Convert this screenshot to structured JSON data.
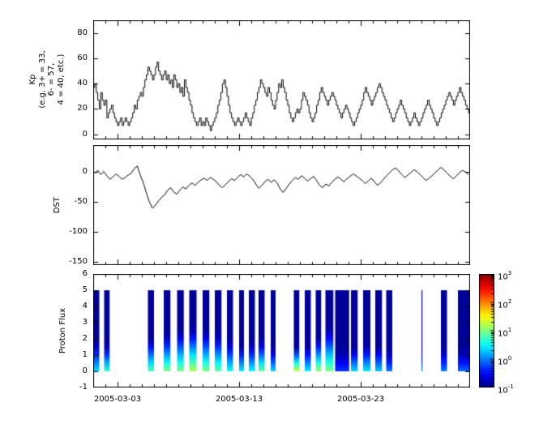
{
  "figure": {
    "bg": "#ffffff",
    "line_color": "#000000"
  },
  "panels": {
    "kp": {
      "ylabel": "Kp\n(e.g. 3+ = 33,\n6- = 57,\n4 = 40, etc.)",
      "yticks": [
        80,
        60,
        40,
        20,
        0
      ],
      "ylim": [
        -4,
        90
      ]
    },
    "dst": {
      "ylabel": "DST",
      "yticks": [
        0,
        -50,
        -100,
        -150
      ],
      "ylim": [
        -155,
        45
      ]
    },
    "proton": {
      "ylabel": "Proton Flux",
      "yticks": [
        6,
        5,
        4,
        3,
        2,
        1,
        0,
        -1
      ],
      "ylim": [
        -1,
        6
      ]
    }
  },
  "xaxis": {
    "range_days": [
      0,
      31
    ],
    "start_date": "2005-03-01",
    "ticks": [
      {
        "day": 2,
        "label": "2005-03-03"
      },
      {
        "day": 12,
        "label": "2005-03-13"
      },
      {
        "day": 22,
        "label": "2005-03-23"
      }
    ]
  },
  "colorbar": {
    "colormap": "jet",
    "log_range": [
      -1,
      3
    ],
    "ticks": [
      {
        "base": "10",
        "exp": "3",
        "log": 3
      },
      {
        "base": "10",
        "exp": "2",
        "log": 2
      },
      {
        "base": "10",
        "exp": "1",
        "log": 1
      },
      {
        "base": "10",
        "exp": "0",
        "log": 0
      },
      {
        "base": "10",
        "exp": "-1",
        "log": -1
      }
    ]
  },
  "chart_data": [
    {
      "type": "line",
      "title": "Kp index",
      "style": "step",
      "ylabel": "Kp",
      "ylim": [
        -4,
        90
      ],
      "x_start_day": 0,
      "x_step_days": 0.125,
      "x_tick_labels": [
        "2005-03-03",
        "2005-03-13",
        "2005-03-23"
      ],
      "values": [
        37,
        40,
        33,
        27,
        20,
        33,
        27,
        23,
        27,
        13,
        17,
        20,
        23,
        17,
        13,
        10,
        7,
        10,
        13,
        7,
        10,
        13,
        10,
        7,
        10,
        13,
        17,
        23,
        20,
        27,
        30,
        33,
        30,
        37,
        43,
        47,
        53,
        50,
        47,
        43,
        47,
        53,
        57,
        50,
        47,
        43,
        47,
        50,
        43,
        47,
        40,
        43,
        37,
        47,
        43,
        37,
        40,
        33,
        37,
        30,
        43,
        37,
        33,
        27,
        23,
        17,
        13,
        10,
        7,
        10,
        13,
        7,
        10,
        7,
        13,
        10,
        7,
        3,
        7,
        10,
        13,
        17,
        23,
        27,
        33,
        40,
        43,
        37,
        30,
        23,
        17,
        13,
        10,
        7,
        10,
        13,
        10,
        7,
        10,
        13,
        17,
        13,
        10,
        7,
        13,
        17,
        23,
        27,
        33,
        37,
        43,
        40,
        37,
        33,
        30,
        37,
        33,
        27,
        23,
        20,
        27,
        33,
        40,
        37,
        43,
        37,
        33,
        27,
        23,
        17,
        13,
        10,
        13,
        17,
        20,
        17,
        20,
        27,
        33,
        30,
        27,
        23,
        17,
        13,
        10,
        13,
        17,
        23,
        27,
        33,
        37,
        33,
        30,
        27,
        23,
        27,
        30,
        33,
        30,
        27,
        23,
        20,
        17,
        13,
        17,
        20,
        23,
        20,
        17,
        13,
        10,
        7,
        10,
        13,
        17,
        20,
        23,
        27,
        33,
        37,
        33,
        30,
        27,
        23,
        27,
        30,
        33,
        37,
        40,
        37,
        33,
        30,
        27,
        23,
        20,
        17,
        13,
        10,
        13,
        17,
        20,
        23,
        27,
        23,
        20,
        17,
        13,
        10,
        7,
        10,
        13,
        17,
        13,
        10,
        7,
        10,
        13,
        17,
        20,
        23,
        27,
        23,
        20,
        17,
        13,
        10,
        7,
        10,
        13,
        17,
        20,
        23,
        27,
        30,
        33,
        30,
        27,
        23,
        27,
        30,
        33,
        37,
        33,
        30,
        27,
        23,
        20,
        17
      ]
    },
    {
      "type": "line",
      "title": "DST",
      "ylabel": "DST",
      "ylim": [
        -155,
        45
      ],
      "x_start_day": 0,
      "x_step_days": 0.25,
      "values": [
        -2,
        3,
        -4,
        1,
        -6,
        -12,
        -8,
        -3,
        -7,
        -12,
        -9,
        -5,
        -2,
        6,
        10,
        -5,
        -18,
        -35,
        -50,
        -60,
        -55,
        -48,
        -42,
        -38,
        -30,
        -26,
        -33,
        -37,
        -30,
        -25,
        -28,
        -22,
        -18,
        -22,
        -17,
        -13,
        -10,
        -14,
        -9,
        -12,
        -16,
        -22,
        -26,
        -21,
        -16,
        -11,
        -14,
        -9,
        -4,
        -8,
        -3,
        -7,
        -12,
        -20,
        -27,
        -22,
        -16,
        -12,
        -17,
        -13,
        -18,
        -28,
        -34,
        -27,
        -20,
        -14,
        -9,
        -12,
        -6,
        -10,
        -15,
        -11,
        -7,
        -14,
        -22,
        -26,
        -20,
        -23,
        -17,
        -12,
        -8,
        -12,
        -16,
        -11,
        -7,
        -3,
        -6,
        -10,
        -14,
        -19,
        -15,
        -10,
        -16,
        -22,
        -18,
        -12,
        -6,
        -1,
        4,
        7,
        2,
        -4,
        -9,
        -5,
        -1,
        4,
        1,
        -4,
        -9,
        -14,
        -10,
        -6,
        -1,
        4,
        8,
        3,
        -2,
        -7,
        -11,
        -6,
        -1,
        3,
        0,
        -4
      ]
    },
    {
      "type": "heatmap",
      "title": "Proton Flux",
      "ylabel": "Proton Flux",
      "ylim": [
        -1,
        6
      ],
      "bar_y_extent": [
        0,
        5
      ],
      "color_scale": "jet",
      "color_log10_range": [
        -1,
        3
      ],
      "segments": [
        {
          "start": 0.0,
          "end": 0.5,
          "bottom_log10_flux": 0.4,
          "decay_height": 1.8
        },
        {
          "start": 0.9,
          "end": 1.35,
          "bottom_log10_flux": 0.7,
          "decay_height": 1.6
        },
        {
          "start": 4.5,
          "end": 5.0,
          "bottom_log10_flux": 0.8,
          "decay_height": 2.0
        },
        {
          "start": 5.8,
          "end": 6.35,
          "bottom_log10_flux": 1.0,
          "decay_height": 2.2
        },
        {
          "start": 6.9,
          "end": 7.45,
          "bottom_log10_flux": 1.0,
          "decay_height": 2.4
        },
        {
          "start": 7.9,
          "end": 8.5,
          "bottom_log10_flux": 1.2,
          "decay_height": 2.6
        },
        {
          "start": 9.0,
          "end": 9.55,
          "bottom_log10_flux": 1.0,
          "decay_height": 2.4
        },
        {
          "start": 10.0,
          "end": 10.55,
          "bottom_log10_flux": 0.9,
          "decay_height": 2.2
        },
        {
          "start": 11.0,
          "end": 11.5,
          "bottom_log10_flux": 0.6,
          "decay_height": 1.8
        },
        {
          "start": 12.0,
          "end": 12.4,
          "bottom_log10_flux": 0.45,
          "decay_height": 1.6
        },
        {
          "start": 12.8,
          "end": 13.3,
          "bottom_log10_flux": 0.5,
          "decay_height": 1.7
        },
        {
          "start": 13.6,
          "end": 14.1,
          "bottom_log10_flux": 0.9,
          "decay_height": 1.8
        },
        {
          "start": 14.6,
          "end": 15.0,
          "bottom_log10_flux": 0.35,
          "decay_height": 1.4
        },
        {
          "start": 16.5,
          "end": 16.95,
          "bottom_log10_flux": 1.3,
          "decay_height": 1.5
        },
        {
          "start": 17.4,
          "end": 17.9,
          "bottom_log10_flux": 0.45,
          "decay_height": 1.5
        },
        {
          "start": 18.3,
          "end": 18.75,
          "bottom_log10_flux": 1.1,
          "decay_height": 2.0
        },
        {
          "start": 19.1,
          "end": 19.75,
          "bottom_log10_flux": 1.0,
          "decay_height": 2.6
        },
        {
          "start": 19.9,
          "end": 21.05,
          "bottom_log10_flux": -0.3,
          "decay_height": 1.2
        },
        {
          "start": 21.2,
          "end": 21.75,
          "bottom_log10_flux": 0.35,
          "decay_height": 1.5
        },
        {
          "start": 22.2,
          "end": 22.8,
          "bottom_log10_flux": 0.45,
          "decay_height": 1.6
        },
        {
          "start": 23.2,
          "end": 23.75,
          "bottom_log10_flux": 0.3,
          "decay_height": 1.5
        },
        {
          "start": 24.1,
          "end": 24.6,
          "bottom_log10_flux": 0.0,
          "decay_height": 1.2
        },
        {
          "start": 27.0,
          "end": 27.08,
          "bottom_log10_flux": 0.1,
          "decay_height": 1.2
        },
        {
          "start": 28.6,
          "end": 29.1,
          "bottom_log10_flux": 0.0,
          "decay_height": 1.3
        },
        {
          "start": 30.0,
          "end": 30.95,
          "bottom_log10_flux": -0.1,
          "decay_height": 1.2
        }
      ]
    }
  ]
}
